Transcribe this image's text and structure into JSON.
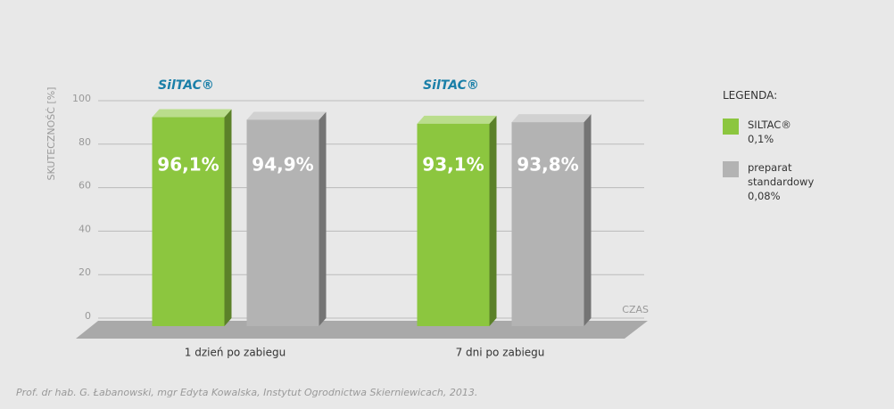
{
  "chart_data": {
    "type": "bar",
    "y_label": "SKUTECZNOŚĆ [%]",
    "x_label": "CZAS",
    "legend_title": "LEGENDA:",
    "logos": [
      "SilTAC®",
      "SilTAC®"
    ],
    "categories": [
      "1 dzień po zabiegu",
      "7 dni po zabiegu"
    ],
    "series": [
      {
        "name": "SILTAC®",
        "note": "0,1%",
        "color": "#8cc63f",
        "values": [
          96.1,
          93.1
        ],
        "value_labels": [
          "96,1%",
          "93,1%"
        ]
      },
      {
        "name": "preparat standardowy",
        "note": "0,08%",
        "color": "#b3b3b3",
        "values": [
          94.9,
          93.8
        ],
        "value_labels": [
          "94,9%",
          "93,8%"
        ]
      }
    ],
    "ylim": [
      0,
      100
    ],
    "yticks": [
      0,
      20,
      40,
      60,
      80,
      100
    ],
    "grid": true,
    "source": "Prof. dr hab. G. Łabanowski, mgr Edyta Kowalska, Instytut Ogrodnictwa Skierniewicach, 2013."
  }
}
